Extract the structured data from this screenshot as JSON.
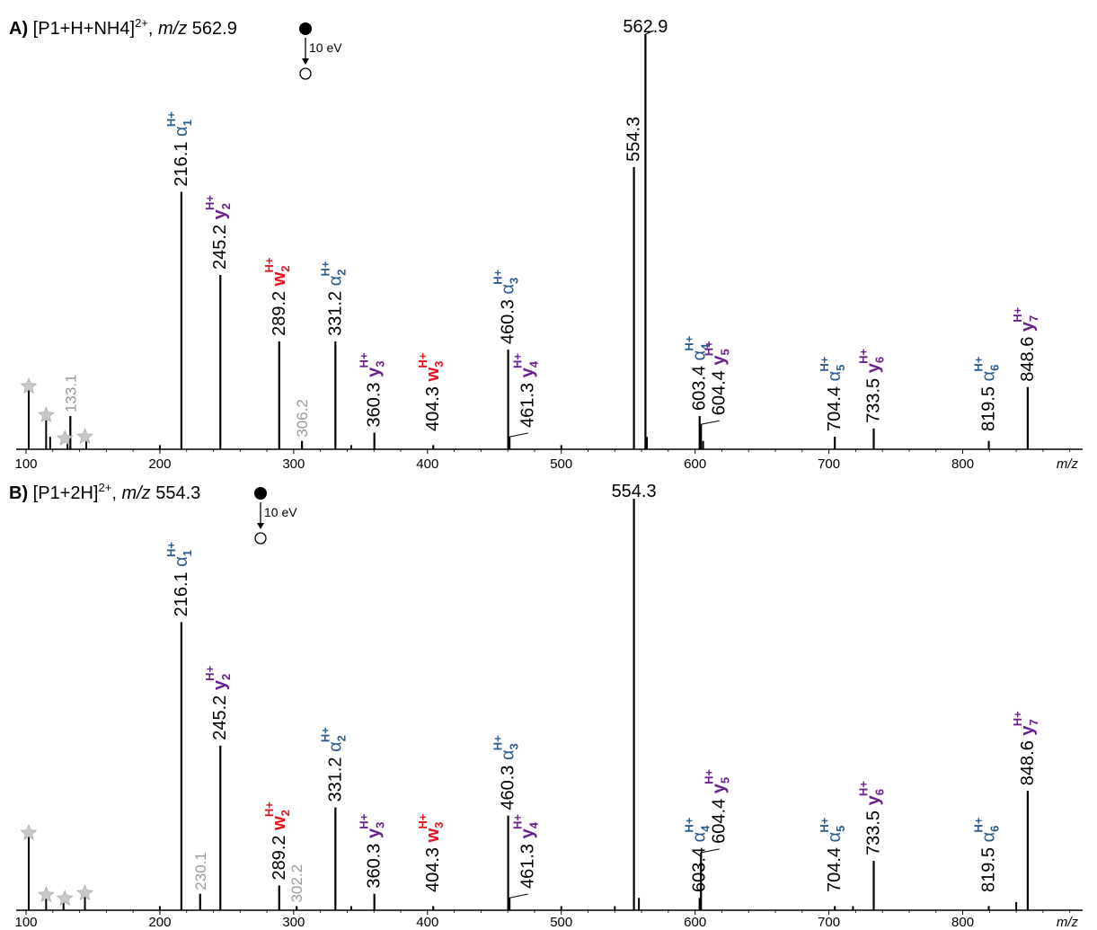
{
  "colors": {
    "black": "#000000",
    "alpha": "#2b5c8f",
    "y": "#6a1f8e",
    "w": "#e3131b",
    "unassigned": "#9b9b9b",
    "star": "#c8c8c8"
  },
  "chart_data": [
    {
      "type": "bar",
      "panel": "A)",
      "precursor_ion": "[P1+H+NH4]",
      "precursor_charge": "2+",
      "precursor_mz_label": "m/z",
      "precursor_mz": "562.9",
      "activation": "10 eV",
      "xlabel": "m/z",
      "xlim": [
        95,
        890
      ],
      "xticks": [
        100,
        200,
        300,
        400,
        500,
        600,
        700,
        800
      ],
      "ylim": [
        0,
        100
      ],
      "peaks": [
        {
          "x": 216.1,
          "y": 62,
          "label": "216.1",
          "ion": "α",
          "sub": "1",
          "charge": "H+",
          "cls": "alpha"
        },
        {
          "x": 245.2,
          "y": 42,
          "label": "245.2",
          "ion": "y",
          "sub": "2",
          "charge": "H+",
          "cls": "y"
        },
        {
          "x": 289.2,
          "y": 26,
          "label": "289.2",
          "ion": "w",
          "sub": "2",
          "charge": "H+",
          "cls": "w"
        },
        {
          "x": 306.2,
          "y": 2,
          "label": "306.2",
          "ion": "",
          "sub": "",
          "charge": "",
          "cls": "unassigned"
        },
        {
          "x": 331.2,
          "y": 26,
          "label": "331.2",
          "ion": "α",
          "sub": "2",
          "charge": "H+",
          "cls": "alpha"
        },
        {
          "x": 360.3,
          "y": 4,
          "label": "360.3",
          "ion": "y",
          "sub": "3",
          "charge": "H+",
          "cls": "y"
        },
        {
          "x": 404.3,
          "y": 1,
          "label": "404.3",
          "ion": "w",
          "sub": "3",
          "charge": "H+",
          "cls": "w"
        },
        {
          "x": 460.3,
          "y": 24,
          "label": "460.3",
          "ion": "α",
          "sub": "3",
          "charge": "H+",
          "cls": "alpha"
        },
        {
          "x": 461.3,
          "y": 3,
          "label": "461.3",
          "ion": "y",
          "sub": "4",
          "charge": "H+",
          "cls": "y"
        },
        {
          "x": 554.3,
          "y": 68,
          "label": "554.3",
          "ion": "",
          "sub": "",
          "charge": "",
          "cls": "plain"
        },
        {
          "x": 562.9,
          "y": 100,
          "label": "562.9",
          "ion": "",
          "sub": "",
          "charge": "",
          "cls": "plain"
        },
        {
          "x": 603.4,
          "y": 8,
          "label": "603.4",
          "ion": "α",
          "sub": "4",
          "charge": "H+",
          "cls": "alpha"
        },
        {
          "x": 604.4,
          "y": 6,
          "label": "604.4",
          "ion": "y",
          "sub": "5",
          "charge": "H+",
          "cls": "y"
        },
        {
          "x": 704.4,
          "y": 3,
          "label": "704.4",
          "ion": "α",
          "sub": "5",
          "charge": "H+",
          "cls": "alpha"
        },
        {
          "x": 733.5,
          "y": 5,
          "label": "733.5",
          "ion": "y",
          "sub": "6",
          "charge": "H+",
          "cls": "y"
        },
        {
          "x": 819.5,
          "y": 2,
          "label": "819.5",
          "ion": "α",
          "sub": "6",
          "charge": "H+",
          "cls": "alpha"
        },
        {
          "x": 848.6,
          "y": 15,
          "label": "848.6",
          "ion": "y",
          "sub": "7",
          "charge": "H+",
          "cls": "y"
        },
        {
          "x": 133.1,
          "y": 8,
          "label": "133.1",
          "ion": "",
          "sub": "",
          "charge": "",
          "cls": "unassigned"
        }
      ],
      "minor_peaks": [
        {
          "x": 102,
          "y": 15
        },
        {
          "x": 115,
          "y": 7
        },
        {
          "x": 118,
          "y": 3
        },
        {
          "x": 131,
          "y": 3
        },
        {
          "x": 145,
          "y": 2
        },
        {
          "x": 200,
          "y": 1
        },
        {
          "x": 343,
          "y": 1
        },
        {
          "x": 500,
          "y": 1
        },
        {
          "x": 564,
          "y": 3
        },
        {
          "x": 606,
          "y": 2
        }
      ],
      "stars": [
        102,
        115,
        129,
        144
      ]
    },
    {
      "type": "bar",
      "panel": "B)",
      "precursor_ion": "[P1+2H]",
      "precursor_charge": "2+",
      "precursor_mz_label": "m/z",
      "precursor_mz": "554.3",
      "activation": "10 eV",
      "xlabel": "m/z",
      "xlim": [
        95,
        890
      ],
      "xticks": [
        100,
        200,
        300,
        400,
        500,
        600,
        700,
        800
      ],
      "ylim": [
        0,
        100
      ],
      "peaks": [
        {
          "x": 216.1,
          "y": 70,
          "label": "216.1",
          "ion": "α",
          "sub": "1",
          "charge": "H+",
          "cls": "alpha"
        },
        {
          "x": 230.1,
          "y": 4,
          "label": "230.1",
          "ion": "",
          "sub": "",
          "charge": "",
          "cls": "unassigned"
        },
        {
          "x": 245.2,
          "y": 40,
          "label": "245.2",
          "ion": "y",
          "sub": "2",
          "charge": "H+",
          "cls": "y"
        },
        {
          "x": 289.2,
          "y": 6,
          "label": "289.2",
          "ion": "w",
          "sub": "2",
          "charge": "H+",
          "cls": "w"
        },
        {
          "x": 302.2,
          "y": 1,
          "label": "302.2",
          "ion": "",
          "sub": "",
          "charge": "",
          "cls": "unassigned"
        },
        {
          "x": 331.2,
          "y": 25,
          "label": "331.2",
          "ion": "α",
          "sub": "2",
          "charge": "H+",
          "cls": "alpha"
        },
        {
          "x": 360.3,
          "y": 4,
          "label": "360.3",
          "ion": "y",
          "sub": "3",
          "charge": "H+",
          "cls": "y"
        },
        {
          "x": 404.3,
          "y": 1,
          "label": "404.3",
          "ion": "w",
          "sub": "3",
          "charge": "H+",
          "cls": "w"
        },
        {
          "x": 460.3,
          "y": 23,
          "label": "460.3",
          "ion": "α",
          "sub": "3",
          "charge": "H+",
          "cls": "alpha"
        },
        {
          "x": 461.3,
          "y": 3,
          "label": "461.3",
          "ion": "y",
          "sub": "4",
          "charge": "H+",
          "cls": "y"
        },
        {
          "x": 554.3,
          "y": 100,
          "label": "554.3",
          "ion": "",
          "sub": "",
          "charge": "",
          "cls": "plain"
        },
        {
          "x": 603.4,
          "y": 3,
          "label": "603.4",
          "ion": "α",
          "sub": "4",
          "charge": "H+",
          "cls": "alpha"
        },
        {
          "x": 604.4,
          "y": 14,
          "label": "604.4",
          "ion": "y",
          "sub": "5",
          "charge": "H+",
          "cls": "y"
        },
        {
          "x": 704.4,
          "y": 1,
          "label": "704.4",
          "ion": "α",
          "sub": "5",
          "charge": "H+",
          "cls": "alpha"
        },
        {
          "x": 733.5,
          "y": 12,
          "label": "733.5",
          "ion": "y",
          "sub": "6",
          "charge": "H+",
          "cls": "y"
        },
        {
          "x": 819.5,
          "y": 1,
          "label": "819.5",
          "ion": "α",
          "sub": "6",
          "charge": "H+",
          "cls": "alpha"
        },
        {
          "x": 848.6,
          "y": 29,
          "label": "848.6",
          "ion": "y",
          "sub": "7",
          "charge": "H+",
          "cls": "y"
        }
      ],
      "minor_peaks": [
        {
          "x": 102,
          "y": 20
        },
        {
          "x": 115,
          "y": 4
        },
        {
          "x": 128,
          "y": 2
        },
        {
          "x": 144,
          "y": 4
        },
        {
          "x": 200,
          "y": 1
        },
        {
          "x": 343,
          "y": 1
        },
        {
          "x": 500,
          "y": 1
        },
        {
          "x": 540,
          "y": 1
        },
        {
          "x": 558,
          "y": 3
        },
        {
          "x": 718,
          "y": 1
        },
        {
          "x": 840,
          "y": 2
        }
      ],
      "stars": [
        102,
        115,
        129,
        144
      ]
    }
  ]
}
